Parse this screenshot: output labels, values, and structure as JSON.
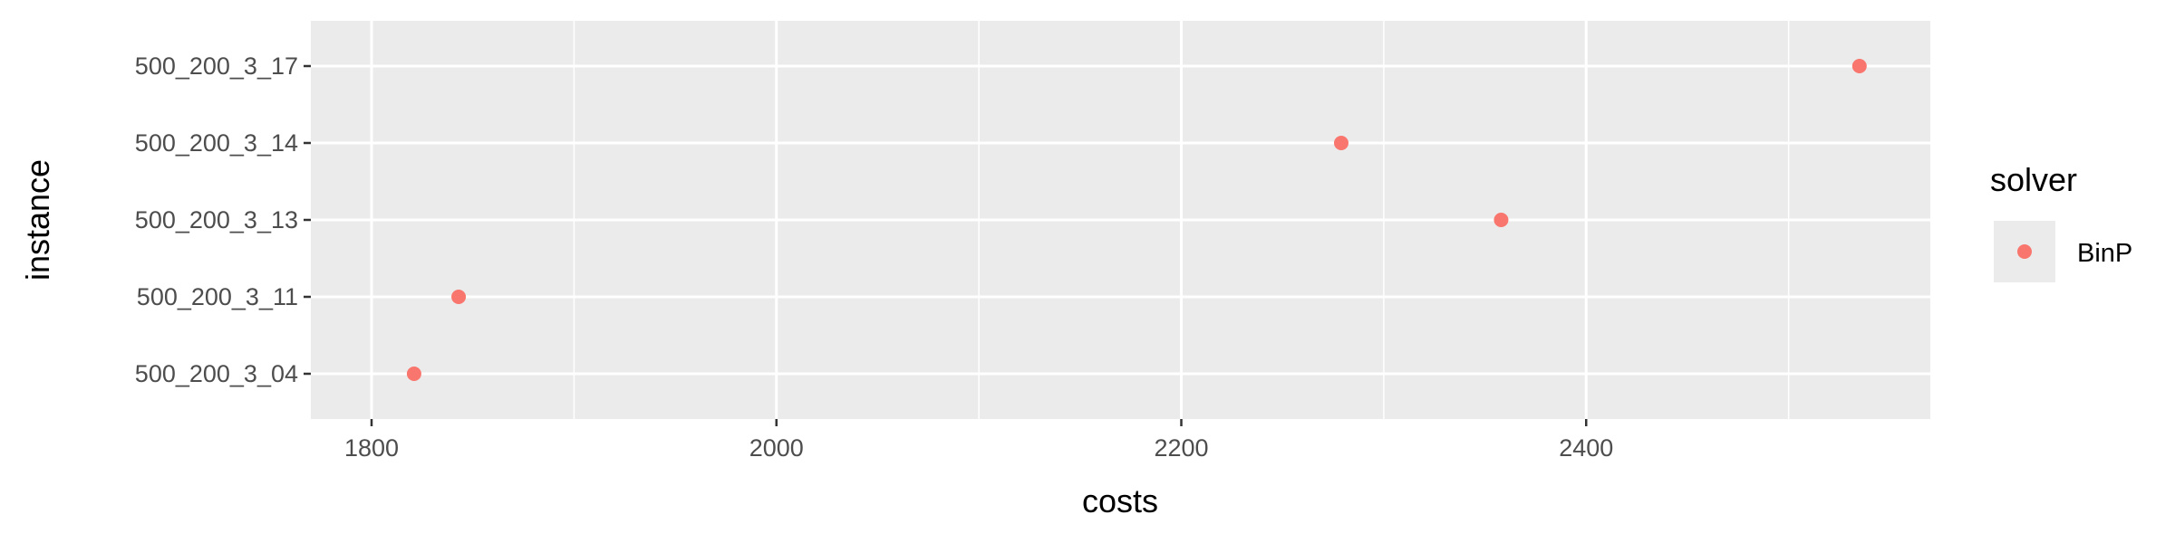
{
  "chart_data": {
    "type": "scatter",
    "title": "",
    "xlabel": "costs",
    "ylabel": "instance",
    "xlim": [
      1770,
      2570
    ],
    "x_ticks": [
      1800,
      2000,
      2200,
      2400
    ],
    "x_minor_ticks": [
      1900,
      2100,
      2300,
      2500
    ],
    "categories": [
      "500_200_3_04",
      "500_200_3_11",
      "500_200_3_13",
      "500_200_3_14",
      "500_200_3_17"
    ],
    "grid": true,
    "legend": {
      "title": "solver",
      "position": "right"
    },
    "series": [
      {
        "name": "BinP",
        "color": "#F8766D",
        "points": [
          {
            "instance": "500_200_3_04",
            "x": 1821
          },
          {
            "instance": "500_200_3_11",
            "x": 1843
          },
          {
            "instance": "500_200_3_13",
            "x": 2358
          },
          {
            "instance": "500_200_3_14",
            "x": 2279
          },
          {
            "instance": "500_200_3_17",
            "x": 2535
          }
        ]
      }
    ]
  },
  "colors": {
    "panel": "#EBEBEB",
    "grid": "#FFFFFF",
    "tick": "#333333"
  }
}
